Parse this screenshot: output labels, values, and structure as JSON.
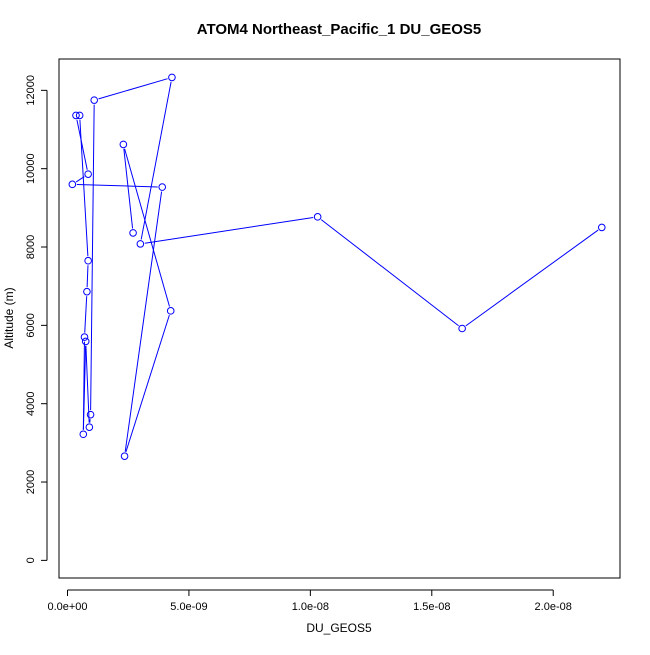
{
  "chart_data": {
    "type": "line",
    "title": "ATOM4 Northeast_Pacific_1 DU_GEOS5",
    "xlabel": "DU_GEOS5",
    "ylabel": "Altitude (m)",
    "xlim": [
      -3.5e-10,
      2.275e-08
    ],
    "ylim": [
      -450,
      12800
    ],
    "grid": false,
    "x_ticks": [
      {
        "value": 0,
        "label": "0.0e+00"
      },
      {
        "value": 5e-09,
        "label": "5.0e-09"
      },
      {
        "value": 1e-08,
        "label": "1.0e-08"
      },
      {
        "value": 1.5e-08,
        "label": "1.5e-08"
      },
      {
        "value": 2e-08,
        "label": "2.0e-08"
      }
    ],
    "y_ticks": [
      {
        "value": 0,
        "label": "0"
      },
      {
        "value": 2000,
        "label": "2000"
      },
      {
        "value": 4000,
        "label": "4000"
      },
      {
        "value": 6000,
        "label": "6000"
      },
      {
        "value": 8000,
        "label": "8000"
      },
      {
        "value": 10000,
        "label": "10000"
      },
      {
        "value": 12000,
        "label": "12000"
      }
    ],
    "series": [
      {
        "color": "#0000ff",
        "marker": "open-circle",
        "points": [
          {
            "x": 2.2e-08,
            "y": 8500
          },
          {
            "x": 1.625e-08,
            "y": 5920
          },
          {
            "x": 1.03e-08,
            "y": 8770
          },
          {
            "x": 3e-09,
            "y": 8080
          },
          {
            "x": 4.3e-09,
            "y": 12330
          },
          {
            "x": 1.1e-09,
            "y": 11750
          },
          {
            "x": 9.5e-10,
            "y": 3720
          },
          {
            "x": 9e-10,
            "y": 3400
          },
          {
            "x": 7.5e-10,
            "y": 5590
          },
          {
            "x": 6.5e-10,
            "y": 3220
          },
          {
            "x": 7e-10,
            "y": 5700
          },
          {
            "x": 8e-10,
            "y": 6860
          },
          {
            "x": 8.5e-10,
            "y": 7650
          },
          {
            "x": 5e-10,
            "y": 11360
          },
          {
            "x": 3.5e-10,
            "y": 11360
          },
          {
            "x": 8.5e-10,
            "y": 9860
          },
          {
            "x": 2e-10,
            "y": 9600
          },
          {
            "x": 3.9e-09,
            "y": 9530
          },
          {
            "x": 2.35e-09,
            "y": 2660
          },
          {
            "x": 4.25e-09,
            "y": 6370
          },
          {
            "x": 2.3e-09,
            "y": 10620
          },
          {
            "x": 2.7e-09,
            "y": 8360
          }
        ]
      }
    ]
  }
}
